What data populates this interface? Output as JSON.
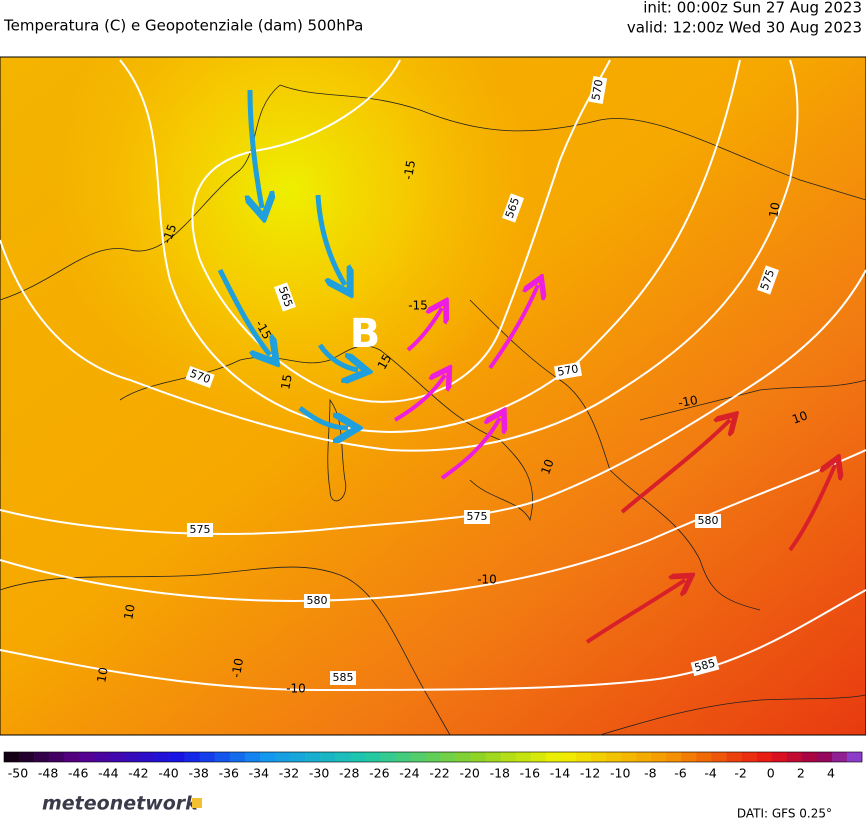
{
  "header": {
    "title": "Temperatura (C) e Geopotenziale (dam) 500hPa",
    "init": "init: 00:00z Sun 27 Aug 2023",
    "valid": "valid: 12:00z Wed 30 Aug 2023"
  },
  "map": {
    "low_label": "B",
    "height_labels": [
      "570",
      "565",
      "575",
      "565",
      "570",
      "570",
      "575",
      "575",
      "580",
      "580",
      "585",
      "585"
    ],
    "temperature_labels": [
      "-15",
      "-15",
      "-15",
      "15",
      "-15",
      "15",
      "10",
      "-10",
      "10",
      "10",
      "-10",
      "10",
      "-10",
      "10",
      "-10"
    ]
  },
  "colorbar": {
    "labels": [
      -50,
      -48,
      -46,
      -44,
      -42,
      -40,
      -38,
      -36,
      -34,
      -32,
      -30,
      -28,
      -26,
      -24,
      -22,
      -20,
      -18,
      -16,
      -14,
      -12,
      -10,
      -8,
      -6,
      -4,
      -2,
      0,
      2,
      4
    ]
  },
  "footer": {
    "brand": "meteonetwork",
    "source": "DATI: GFS 0.25°"
  }
}
